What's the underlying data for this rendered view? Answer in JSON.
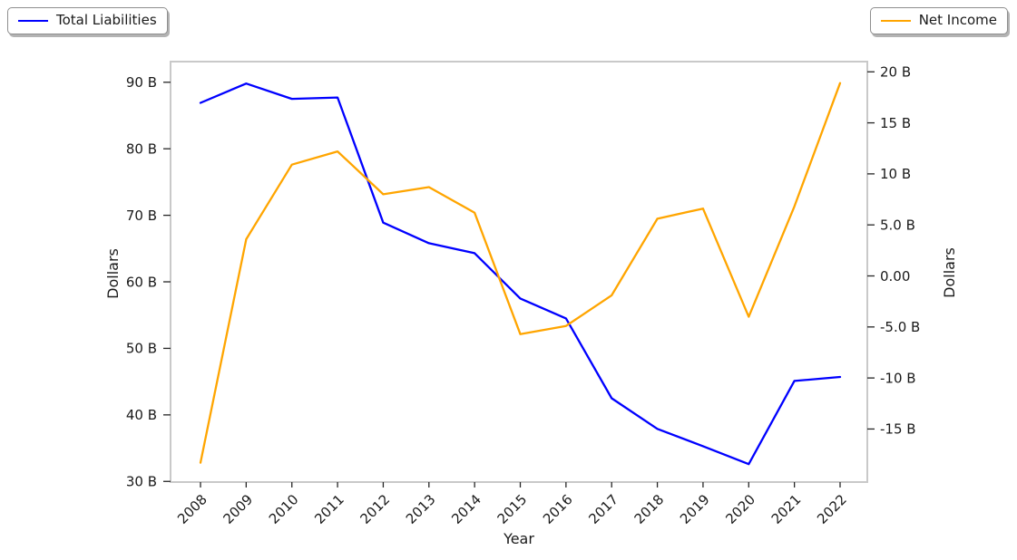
{
  "chart_data": {
    "type": "line",
    "title": "",
    "xlabel": "Year",
    "x": [
      2008,
      2009,
      2010,
      2011,
      2012,
      2013,
      2014,
      2015,
      2016,
      2017,
      2018,
      2019,
      2020,
      2021,
      2022
    ],
    "x_tick_labels": [
      "2008",
      "2009",
      "2010",
      "2011",
      "2012",
      "2013",
      "2014",
      "2015",
      "2016",
      "2017",
      "2018",
      "2019",
      "2020",
      "2021",
      "2022"
    ],
    "series": [
      {
        "name": "Total Liabilities",
        "axis": "left",
        "color": "#0000ff",
        "values": [
          86.9,
          89.8,
          87.5,
          87.7,
          68.9,
          65.8,
          64.3,
          57.5,
          54.5,
          42.5,
          37.9,
          35.3,
          32.6,
          45.1,
          45.7
        ]
      },
      {
        "name": "Net Income",
        "axis": "right",
        "color": "#ffa500",
        "values": [
          -18.3,
          3.6,
          10.9,
          12.2,
          8.0,
          8.7,
          6.2,
          -5.7,
          -4.9,
          -1.9,
          5.6,
          6.6,
          -4.0,
          6.8,
          18.9
        ]
      }
    ],
    "left_axis": {
      "label": "Dollars",
      "unit": "B",
      "tick_values": [
        30,
        40,
        50,
        60,
        70,
        80,
        90
      ],
      "tick_labels": [
        "30 B",
        "40 B",
        "50 B",
        "60 B",
        "70 B",
        "80 B",
        "90 B"
      ],
      "range": [
        29.9,
        93.1
      ]
    },
    "right_axis": {
      "label": "Dollars",
      "unit": "B",
      "tick_values": [
        -15,
        -10,
        -5,
        0,
        5,
        10,
        15,
        20
      ],
      "tick_labels": [
        "-15 B",
        "-10 B",
        "-5.0 B",
        "0.00",
        "5.0 B",
        "10 B",
        "15 B",
        "20 B"
      ],
      "range": [
        -20.2,
        21.0
      ]
    },
    "legend": {
      "entries": [
        "Total Liabilities",
        "Net Income"
      ],
      "positions": [
        "top-left",
        "top-right"
      ]
    },
    "grid": false
  }
}
